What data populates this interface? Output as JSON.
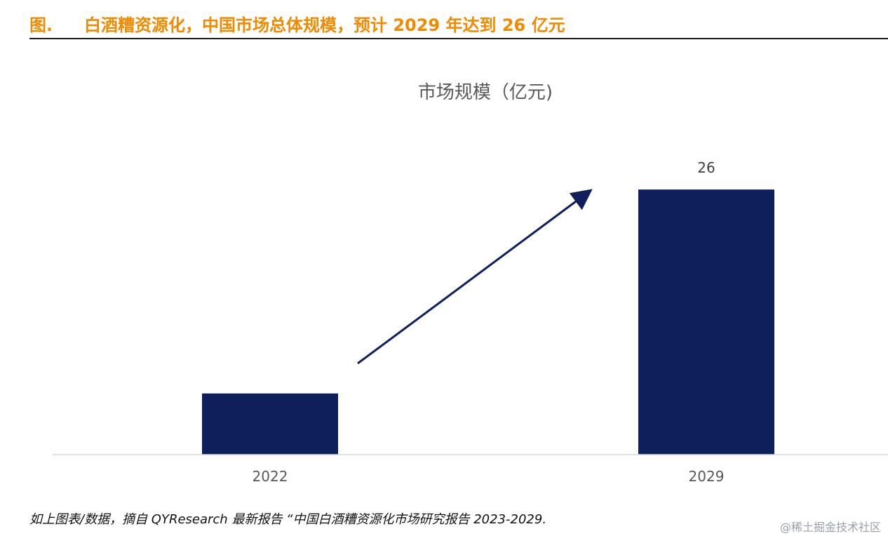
{
  "header": {
    "figure_label": "图.",
    "title": "白酒糟资源化，中国市场总体规模，预计 2029 年达到 26 亿元"
  },
  "chart_data": {
    "type": "bar",
    "title": "市场规模（亿元)",
    "categories": [
      "2022",
      "2029"
    ],
    "values": [
      6,
      26
    ],
    "data_labels": [
      "",
      "26"
    ],
    "ylim": [
      0,
      30
    ],
    "grid": false,
    "legend": "none",
    "bar_color": "#0e1f5b",
    "annotation": "upward-arrow"
  },
  "footnote": "如上图表/数据，摘自 QYResearch 最新报告 “中国白酒糟资源化市场研究报告 2023-2029.",
  "watermark": "@稀土掘金技术社区"
}
